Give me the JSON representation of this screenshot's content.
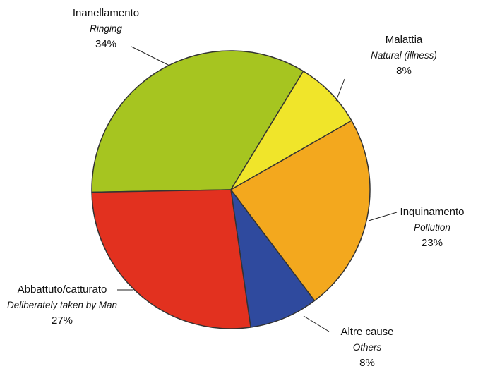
{
  "chart_data": {
    "type": "pie",
    "categories": [
      "Inanellamento",
      "Malattia",
      "Inquinamento",
      "Altre cause",
      "Abbattuto/catturato"
    ],
    "subcategories": [
      "Ringing",
      "Natural (illness)",
      "Pollution",
      "Others",
      "Deliberately taken by Man"
    ],
    "values": [
      34,
      8,
      23,
      8,
      27
    ],
    "value_labels": [
      "34%",
      "8%",
      "23%",
      "8%",
      "27%"
    ],
    "colors": [
      "#a6c520",
      "#f0e52a",
      "#f3a81e",
      "#2f4a9e",
      "#e2311f"
    ]
  }
}
